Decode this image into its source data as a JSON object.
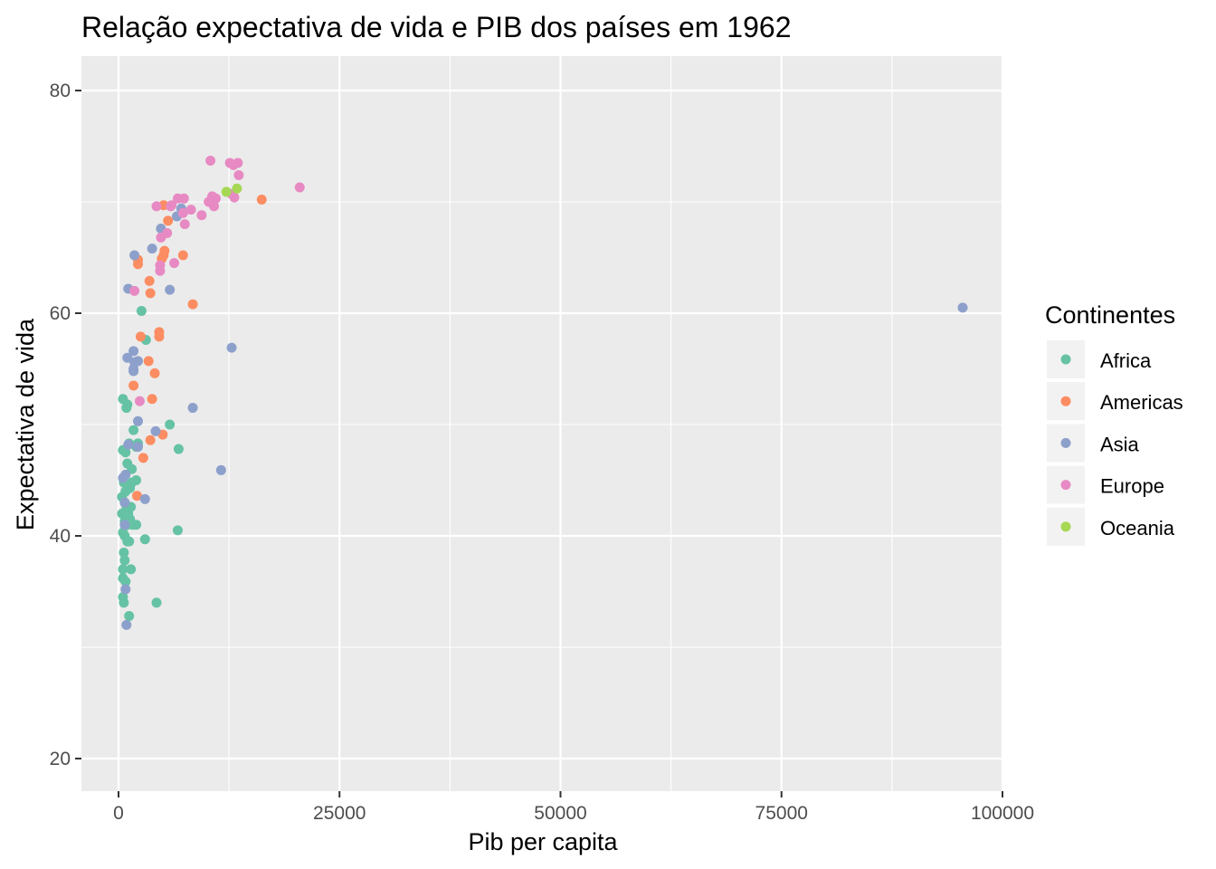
{
  "chart_data": {
    "type": "scatter",
    "title": "Relação expectativa de vida e PIB dos países em 1962",
    "xlabel": "Pib per capita",
    "ylabel": "Expectativa de vida",
    "xlim": [
      -4000,
      100000
    ],
    "ylim": [
      17,
      83
    ],
    "x_ticks": [
      0,
      25000,
      50000,
      75000,
      100000
    ],
    "x_tick_labels": [
      "0",
      "25000",
      "50000",
      "75000",
      "100000"
    ],
    "y_ticks": [
      20,
      40,
      60,
      80
    ],
    "y_tick_labels": [
      "20",
      "40",
      "60",
      "80"
    ],
    "grid": true,
    "legend": {
      "title": "Continentes",
      "position": "right"
    },
    "series": [
      {
        "name": "Africa",
        "color": "#66c2a5",
        "points": [
          [
            500,
            52.3
          ],
          [
            900,
            51.5
          ],
          [
            1000,
            51.8
          ],
          [
            2600,
            60.2
          ],
          [
            3100,
            57.6
          ],
          [
            5800,
            50.0
          ],
          [
            6800,
            47.8
          ],
          [
            6700,
            40.5
          ],
          [
            3000,
            39.7
          ],
          [
            4300,
            34.0
          ],
          [
            500,
            47.7
          ],
          [
            800,
            47.5
          ],
          [
            1200,
            48.3
          ],
          [
            1700,
            49.5
          ],
          [
            2000,
            48.0
          ],
          [
            2200,
            48.3
          ],
          [
            1000,
            46.5
          ],
          [
            1500,
            46.0
          ],
          [
            2000,
            45.0
          ],
          [
            600,
            44.8
          ],
          [
            800,
            44.0
          ],
          [
            1000,
            44.5
          ],
          [
            1300,
            44.3
          ],
          [
            1500,
            44.8
          ],
          [
            400,
            43.5
          ],
          [
            700,
            43.0
          ],
          [
            900,
            42.5
          ],
          [
            1100,
            42.0
          ],
          [
            1400,
            42.6
          ],
          [
            400,
            42.0
          ],
          [
            700,
            41.3
          ],
          [
            1000,
            41.0
          ],
          [
            1300,
            41.5
          ],
          [
            1600,
            41.0
          ],
          [
            2000,
            41.0
          ],
          [
            500,
            40.3
          ],
          [
            700,
            40.0
          ],
          [
            1000,
            39.5
          ],
          [
            1200,
            39.5
          ],
          [
            600,
            38.5
          ],
          [
            700,
            37.8
          ],
          [
            500,
            37.0
          ],
          [
            1400,
            37.0
          ],
          [
            500,
            36.2
          ],
          [
            800,
            35.9
          ],
          [
            500,
            34.5
          ],
          [
            600,
            34.0
          ],
          [
            1200,
            32.8
          ]
        ]
      },
      {
        "name": "Americas",
        "color": "#fc8d62",
        "points": [
          [
            16200,
            70.2
          ],
          [
            5100,
            69.7
          ],
          [
            5600,
            68.3
          ],
          [
            5200,
            65.6
          ],
          [
            5100,
            65.2
          ],
          [
            7300,
            65.2
          ],
          [
            4900,
            64.9
          ],
          [
            2200,
            64.8
          ],
          [
            2200,
            64.4
          ],
          [
            3500,
            62.9
          ],
          [
            3600,
            61.8
          ],
          [
            8400,
            60.8
          ],
          [
            4600,
            58.3
          ],
          [
            4600,
            57.9
          ],
          [
            2500,
            57.9
          ],
          [
            3400,
            55.7
          ],
          [
            4100,
            54.6
          ],
          [
            1700,
            53.5
          ],
          [
            3800,
            52.3
          ],
          [
            3600,
            48.6
          ],
          [
            5000,
            49.1
          ],
          [
            2800,
            47.0
          ],
          [
            2100,
            43.6
          ]
        ]
      },
      {
        "name": "Asia",
        "color": "#8da0cb",
        "points": [
          [
            95500,
            60.5
          ],
          [
            6600,
            68.7
          ],
          [
            7100,
            69.4
          ],
          [
            4800,
            67.6
          ],
          [
            3800,
            65.8
          ],
          [
            1800,
            65.2
          ],
          [
            1100,
            62.2
          ],
          [
            5800,
            62.1
          ],
          [
            12800,
            56.9
          ],
          [
            1700,
            56.6
          ],
          [
            1000,
            56.0
          ],
          [
            1800,
            55.6
          ],
          [
            1700,
            55.0
          ],
          [
            1700,
            54.8
          ],
          [
            2200,
            55.7
          ],
          [
            8400,
            51.5
          ],
          [
            2200,
            50.3
          ],
          [
            4200,
            49.4
          ],
          [
            1100,
            48.2
          ],
          [
            2200,
            48.0
          ],
          [
            11600,
            45.9
          ],
          [
            800,
            45.5
          ],
          [
            3000,
            43.3
          ],
          [
            500,
            45.2
          ],
          [
            700,
            43.0
          ],
          [
            700,
            41.0
          ],
          [
            800,
            35.2
          ],
          [
            900,
            32.0
          ]
        ]
      },
      {
        "name": "Europe",
        "color": "#e78ac3",
        "points": [
          [
            10400,
            73.7
          ],
          [
            12600,
            73.5
          ],
          [
            13000,
            73.3
          ],
          [
            13500,
            73.5
          ],
          [
            13600,
            72.4
          ],
          [
            20500,
            71.3
          ],
          [
            12800,
            70.7
          ],
          [
            13100,
            70.4
          ],
          [
            10600,
            70.5
          ],
          [
            11000,
            70.3
          ],
          [
            10200,
            70.0
          ],
          [
            10800,
            69.6
          ],
          [
            7400,
            70.3
          ],
          [
            6700,
            70.3
          ],
          [
            8200,
            69.3
          ],
          [
            7300,
            69.0
          ],
          [
            9400,
            68.8
          ],
          [
            6000,
            69.7
          ],
          [
            5900,
            69.6
          ],
          [
            4300,
            69.6
          ],
          [
            7500,
            68.0
          ],
          [
            5500,
            67.2
          ],
          [
            4800,
            66.8
          ],
          [
            6300,
            64.5
          ],
          [
            4700,
            64.3
          ],
          [
            4700,
            63.8
          ],
          [
            1800,
            62.0
          ],
          [
            2400,
            52.1
          ]
        ]
      },
      {
        "name": "Oceania",
        "color": "#a6d854",
        "points": [
          [
            12200,
            70.9
          ],
          [
            13400,
            71.2
          ]
        ]
      }
    ]
  }
}
